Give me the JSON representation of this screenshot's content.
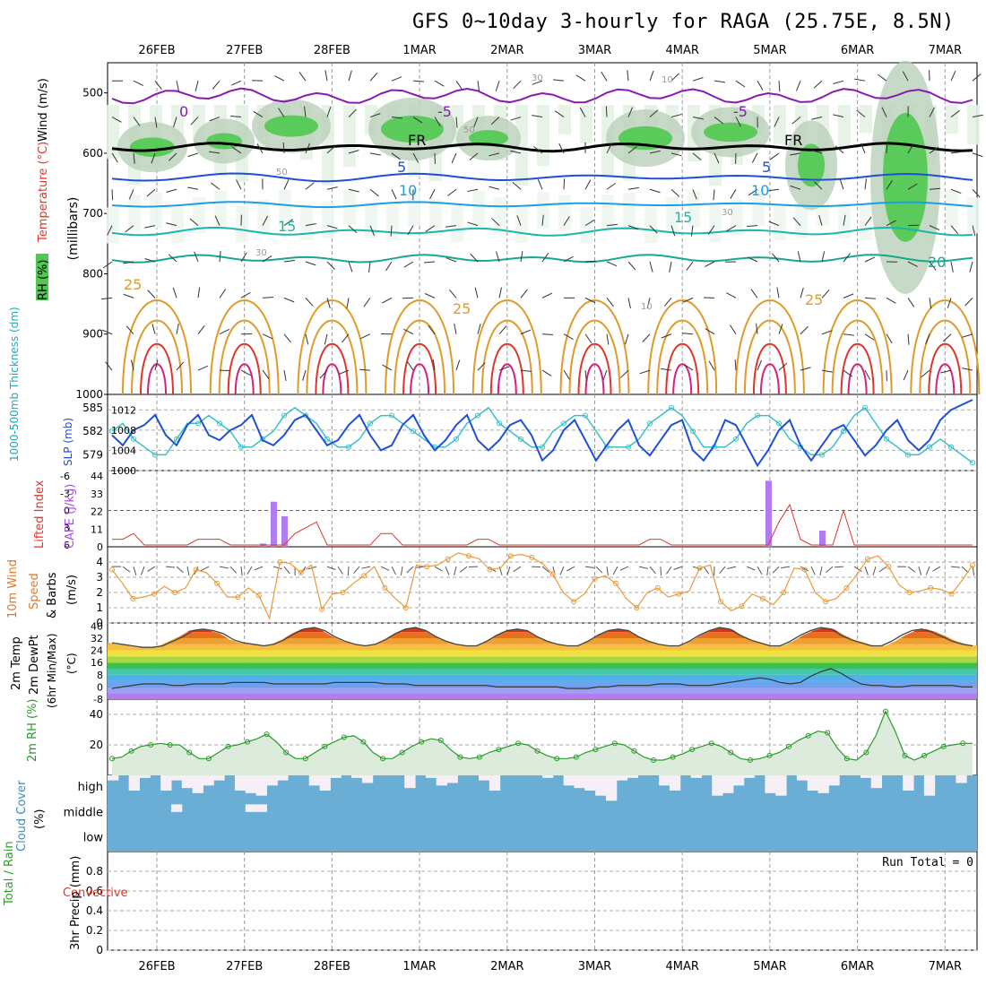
{
  "title": "GFS 0~10day 3-hourly for RAGA (25.75E, 8.5N)",
  "dates": [
    "26FEB",
    "27FEB",
    "28FEB",
    "1MAR",
    "2MAR",
    "3MAR",
    "4MAR",
    "5MAR",
    "6MAR",
    "7MAR"
  ],
  "colors": {
    "rh_green": "#4fc94f",
    "purple": "#8a1aaf",
    "blue": "#1f4fd6",
    "cyan": "#1a9ee6",
    "teal": "#18b8a8",
    "orange": "#e09a2a",
    "red": "#e0342a",
    "magenta": "#d4217a",
    "cloud": "#6aaed6",
    "rh_line": "#2a9a2a",
    "wind_line": "#e89a3a"
  },
  "chart_data": [
    {
      "type": "line",
      "panel": "upper-air",
      "ylabel_left_1": "RH (%)",
      "ylabel_left_2": "Temperature (°C)",
      "ylabel_left_3": "Wind (m/s)",
      "ylabel_unit": "(millibars)",
      "yticks": [
        500,
        600,
        700,
        800,
        900,
        1000
      ],
      "ylim": [
        450,
        1000
      ],
      "contour_labels": [
        "0",
        "-5",
        "-5",
        "FR",
        "FR",
        "5",
        "5",
        "10",
        "10",
        "15",
        "15",
        "20",
        "25",
        "25",
        "25",
        "30",
        "30",
        "30",
        "50",
        "50",
        "10",
        "10"
      ],
      "levels": {
        "freezing": 590,
        "t_minus5": 505,
        "t5": 640,
        "t10": 685,
        "t15": 730,
        "t20": 775,
        "t25": 820
      }
    },
    {
      "type": "line",
      "panel": "thickness-slp",
      "ylabel_left": "1000-500mb Thickness (dm)",
      "ylabel_right": "SLP (mb)",
      "yticks_left": [
        579,
        582,
        585
      ],
      "yticks_right": [
        1000,
        1004,
        1008,
        1012
      ],
      "ylim_right": [
        1000,
        1014
      ],
      "series": [
        {
          "name": "SLP (mb)",
          "values": [
            1007,
            1005,
            1008,
            1009,
            1011,
            1007,
            1005,
            1009,
            1011,
            1007,
            1006,
            1008,
            1009,
            1011,
            1006,
            1005,
            1007,
            1010,
            1011,
            1008,
            1005,
            1006,
            1009,
            1011,
            1007,
            1004,
            1005,
            1009,
            1011,
            1007,
            1004,
            1006,
            1009,
            1011,
            1006,
            1004,
            1006,
            1009,
            1010,
            1007,
            1002,
            1004,
            1008,
            1010,
            1006,
            1002,
            1005,
            1008,
            1010,
            1005,
            1003,
            1006,
            1009,
            1010,
            1004,
            1002,
            1005,
            1010,
            1009,
            1005,
            1001,
            1004,
            1008,
            1010,
            1005,
            1002,
            1005,
            1008,
            1009,
            1006,
            1003,
            1005,
            1008,
            1010,
            1006,
            1004,
            1006,
            1010,
            1012,
            1013,
            1014
          ]
        },
        {
          "name": "Thickness (dm)",
          "values": [
            582,
            583,
            581,
            580,
            579,
            579,
            581,
            583,
            583,
            584,
            583,
            582,
            580,
            580,
            581,
            582,
            584,
            585,
            584,
            583,
            581,
            580,
            580,
            581,
            583,
            584,
            584,
            583,
            582,
            581,
            580,
            580,
            581,
            583,
            584,
            585,
            583,
            582,
            581,
            580,
            580,
            582,
            583,
            584,
            584,
            582,
            580,
            580,
            580,
            581,
            583,
            584,
            585,
            584,
            582,
            580,
            580,
            580,
            581,
            583,
            584,
            584,
            583,
            581,
            580,
            579,
            579,
            580,
            582,
            584,
            585,
            583,
            581,
            580,
            579,
            579,
            580,
            581,
            580,
            579,
            578
          ]
        }
      ]
    },
    {
      "type": "bar",
      "panel": "lifted-cape",
      "ylabel_left": "Lifted Index",
      "ylabel_right": "CAPE (J/kg)",
      "yticks_left": [
        -6,
        -3,
        0,
        3,
        6
      ],
      "yticks_right": [
        0,
        11,
        22,
        33,
        44
      ],
      "cape_bars": [
        {
          "x": 14,
          "v": 2
        },
        {
          "x": 15,
          "v": 28
        },
        {
          "x": 16,
          "v": 19
        },
        {
          "x": 61,
          "v": 41
        },
        {
          "x": 66,
          "v": 10
        }
      ],
      "lifted_index": [
        5,
        5,
        4,
        6,
        6,
        6,
        6,
        6,
        5,
        5,
        5,
        6,
        6,
        6,
        6,
        6,
        6,
        4,
        3,
        2,
        6,
        6,
        6,
        6,
        6,
        4,
        4,
        6,
        6,
        6,
        6,
        6,
        6,
        6,
        5,
        5,
        6,
        6,
        6,
        6,
        6,
        6,
        6,
        6,
        6,
        6,
        6,
        6,
        6,
        6,
        5,
        5,
        6,
        6,
        6,
        6,
        6,
        6,
        6,
        6,
        6,
        6,
        2,
        -1,
        5,
        6,
        6,
        6,
        0,
        6,
        6,
        6,
        6,
        6,
        6,
        6,
        6,
        6,
        6,
        6,
        6
      ]
    },
    {
      "type": "line",
      "panel": "wind",
      "ylabel": "10m Wind Speed & Barbs (m/s)",
      "yticks": [
        0,
        1,
        2,
        3,
        4
      ],
      "ylim": [
        0,
        5
      ],
      "values": [
        3.5,
        2.6,
        1.6,
        1.7,
        1.9,
        2.4,
        2.0,
        2.3,
        3.5,
        3.3,
        2.6,
        1.7,
        1.7,
        2.3,
        1.8,
        0.3,
        4.0,
        3.9,
        3.3,
        3.8,
        0.9,
        1.9,
        2.0,
        2.6,
        3.1,
        3.7,
        2.3,
        1.6,
        1.0,
        3.8,
        3.7,
        3.8,
        4.2,
        4.6,
        4.4,
        4.2,
        3.5,
        3.6,
        4.4,
        4.5,
        4.3,
        3.9,
        3.2,
        2.0,
        1.4,
        1.9,
        2.9,
        3.1,
        2.6,
        1.6,
        1.0,
        2.0,
        2.3,
        1.7,
        1.9,
        2.1,
        3.6,
        3.8,
        1.4,
        0.8,
        1.1,
        1.9,
        1.6,
        1.2,
        2.0,
        3.6,
        3.5,
        2.0,
        1.4,
        1.6,
        2.3,
        3.2,
        4.2,
        4.4,
        3.7,
        2.5,
        2.0,
        2.1,
        2.3,
        2.2,
        1.9,
        2.8,
        3.8
      ]
    },
    {
      "type": "area",
      "panel": "temperature",
      "ylabel": "2m Temp 2m DewPt (6hr Min/Max) (°C)",
      "yticks": [
        -8,
        0,
        8,
        16,
        24,
        32,
        40
      ],
      "ylim": [
        -8,
        42
      ],
      "temp": [
        29,
        28,
        27,
        26,
        26,
        27,
        30,
        33,
        37,
        38,
        37,
        35,
        31,
        29,
        28,
        27,
        28,
        31,
        35,
        38,
        39,
        37,
        33,
        30,
        28,
        27,
        28,
        31,
        35,
        38,
        39,
        37,
        33,
        30,
        28,
        27,
        27,
        30,
        34,
        37,
        38,
        37,
        33,
        30,
        28,
        27,
        27,
        30,
        34,
        37,
        38,
        37,
        33,
        30,
        28,
        27,
        27,
        30,
        34,
        37,
        39,
        38,
        34,
        31,
        29,
        27,
        27,
        30,
        34,
        37,
        39,
        38,
        34,
        31,
        29,
        27,
        27,
        30,
        34,
        37,
        38,
        36,
        33,
        30,
        28,
        27
      ],
      "dewpt": [
        -1,
        0,
        1,
        2,
        2,
        2,
        1,
        1,
        2,
        2,
        2,
        2,
        3,
        3,
        3,
        3,
        2,
        2,
        2,
        2,
        2,
        2,
        3,
        3,
        3,
        3,
        3,
        2,
        2,
        2,
        1,
        1,
        1,
        1,
        1,
        1,
        1,
        1,
        0,
        0,
        0,
        0,
        0,
        0,
        0,
        -1,
        -1,
        -1,
        0,
        0,
        1,
        1,
        1,
        1,
        2,
        2,
        2,
        1,
        1,
        1,
        2,
        3,
        4,
        5,
        6,
        5,
        3,
        2,
        3,
        7,
        10,
        12,
        9,
        5,
        2,
        1,
        1,
        0,
        0,
        1,
        1,
        1,
        1,
        1,
        0,
        0
      ]
    },
    {
      "type": "area",
      "panel": "rh",
      "ylabel": "2m RH (%)",
      "yticks": [
        20,
        40
      ],
      "ylim": [
        0,
        50
      ],
      "values": [
        11,
        12,
        16,
        19,
        20,
        21,
        20,
        20,
        15,
        11,
        11,
        15,
        19,
        20,
        22,
        24,
        27,
        22,
        15,
        11,
        11,
        15,
        19,
        22,
        25,
        26,
        22,
        15,
        11,
        11,
        15,
        19,
        22,
        24,
        23,
        17,
        12,
        11,
        12,
        15,
        17,
        19,
        21,
        20,
        16,
        13,
        11,
        11,
        12,
        15,
        17,
        19,
        21,
        20,
        16,
        12,
        10,
        10,
        12,
        14,
        17,
        19,
        21,
        19,
        15,
        11,
        10,
        11,
        13,
        15,
        19,
        23,
        26,
        29,
        28,
        18,
        11,
        10,
        15,
        26,
        42,
        29,
        13,
        10,
        13,
        16,
        19,
        20,
        21,
        21
      ]
    },
    {
      "type": "bar",
      "panel": "cloud-cover",
      "ylabel": "Cloud Cover (%)",
      "layers": [
        "high",
        "middle",
        "low"
      ],
      "high": [
        80,
        100,
        40,
        90,
        100,
        40,
        80,
        50,
        30,
        60,
        80,
        100,
        40,
        30,
        20,
        60,
        80,
        100,
        100,
        60,
        40,
        90,
        100,
        90,
        70,
        100,
        100,
        100,
        50,
        100,
        90,
        60,
        70,
        100,
        100,
        80,
        40,
        100,
        100,
        100,
        100,
        90,
        100,
        60,
        50,
        40,
        20,
        0,
        80,
        90,
        100,
        100,
        60,
        40,
        100,
        90,
        100,
        20,
        30,
        60,
        90,
        100,
        30,
        20,
        100,
        80,
        40,
        30,
        60,
        100,
        100,
        90,
        50,
        100,
        100,
        40,
        100,
        20,
        100,
        100,
        70,
        100
      ],
      "middle": [
        100,
        100,
        100,
        100,
        100,
        100,
        0,
        100,
        100,
        100,
        100,
        100,
        100,
        0,
        0,
        100,
        100,
        100,
        100,
        100,
        100,
        100,
        100,
        100,
        100,
        100,
        100,
        100,
        100,
        100,
        100,
        100,
        100,
        100,
        100,
        100,
        100,
        100,
        100,
        100,
        100,
        100,
        100,
        100,
        100,
        100,
        100,
        100,
        100,
        100,
        100,
        100,
        100,
        100,
        100,
        100,
        100,
        100,
        100,
        100,
        100,
        100,
        100,
        100,
        100,
        100,
        100,
        100,
        100,
        100,
        100,
        100,
        100,
        100,
        100,
        100,
        100,
        100,
        100,
        100,
        100
      ],
      "low": [
        100,
        100,
        100,
        100,
        100,
        100,
        100,
        100,
        100,
        100,
        100,
        100,
        100,
        100,
        100,
        100,
        100,
        100,
        100,
        100,
        100,
        100,
        100,
        100,
        100,
        100,
        100,
        100,
        100,
        100,
        100,
        100,
        100,
        100,
        100,
        100,
        100,
        100,
        100,
        100,
        100,
        100,
        100,
        100,
        100,
        100,
        100,
        100,
        100,
        100,
        100,
        100,
        100,
        100,
        100,
        100,
        100,
        100,
        100,
        100,
        100,
        100,
        100,
        100,
        100,
        100,
        100,
        100,
        100,
        100,
        100,
        100,
        100,
        100,
        100,
        100,
        100,
        100,
        100,
        100,
        100
      ]
    },
    {
      "type": "bar",
      "panel": "precip",
      "ylabel": "3hr Precip (mm) Total / Rain Convective",
      "yticks": [
        0,
        0.2,
        0.4,
        0.6,
        0.8
      ],
      "ylim": [
        0,
        1
      ],
      "run_total_label": "Run Total = 0",
      "values": []
    }
  ]
}
